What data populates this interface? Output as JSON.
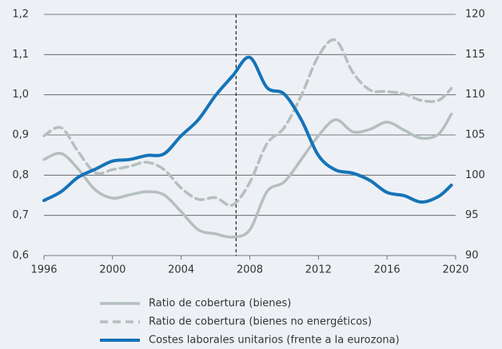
{
  "chart_data": {
    "type": "line",
    "x": [
      1996,
      1997,
      1998,
      1999,
      2000,
      2001,
      2002,
      2003,
      2004,
      2005,
      2006,
      2007,
      2008,
      2009,
      2010,
      2011,
      2012,
      2013,
      2014,
      2015,
      2016,
      2017,
      2018,
      2019,
      2019.75
    ],
    "xlim": [
      1996,
      2020
    ],
    "xticks": [
      1996,
      2000,
      2004,
      2008,
      2012,
      2016,
      2020
    ],
    "ylim": [
      0.6,
      1.2
    ],
    "yticks": [
      {
        "value": 0.6,
        "label": "0,6"
      },
      {
        "value": 0.7,
        "label": "0,7"
      },
      {
        "value": 0.8,
        "label": "0,8"
      },
      {
        "value": 0.9,
        "label": "0,9"
      },
      {
        "value": 1.0,
        "label": "1,0"
      },
      {
        "value": 1.1,
        "label": "1,1"
      },
      {
        "value": 1.2,
        "label": "1,2"
      }
    ],
    "y2lim": [
      90,
      120
    ],
    "y2ticks": [
      90,
      95,
      100,
      105,
      110,
      115,
      120
    ],
    "grid": true,
    "vline": 2007.2,
    "series": [
      {
        "name": "Ratio de cobertura (bienes)",
        "color": "#b5bfbd",
        "dash": false,
        "values": [
          0.839,
          0.854,
          0.815,
          0.763,
          0.743,
          0.751,
          0.759,
          0.751,
          0.709,
          0.664,
          0.654,
          0.646,
          0.664,
          0.759,
          0.783,
          0.839,
          0.898,
          0.938,
          0.908,
          0.914,
          0.932,
          0.912,
          0.892,
          0.902,
          0.952
        ]
      },
      {
        "name": "Ratio de cobertura (bienes no energéticos)",
        "color": "#b5bfbd",
        "dash": true,
        "axis": "y2",
        "values": [
          104.9,
          105.9,
          102.9,
          100.3,
          100.7,
          101.1,
          101.6,
          100.7,
          98.4,
          97.0,
          97.2,
          96.3,
          99.1,
          103.9,
          105.9,
          109.9,
          114.8,
          116.8,
          112.8,
          110.6,
          110.4,
          110.1,
          109.3,
          109.3,
          110.8
        ]
      },
      {
        "name": "Costes laborales unitarios (frente a la eurozona)",
        "color": "#1573b8",
        "dash": false,
        "values": [
          0.737,
          0.759,
          0.795,
          0.815,
          0.835,
          0.839,
          0.849,
          0.853,
          0.898,
          0.938,
          0.998,
          1.047,
          1.093,
          1.018,
          1.002,
          0.938,
          0.849,
          0.813,
          0.805,
          0.787,
          0.757,
          0.749,
          0.733,
          0.747,
          0.775
        ]
      }
    ]
  }
}
